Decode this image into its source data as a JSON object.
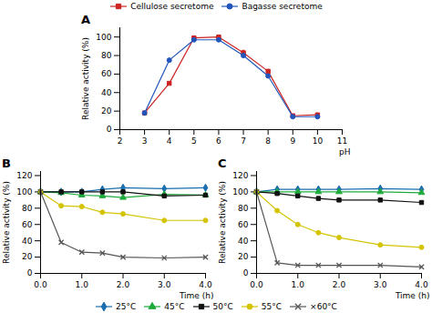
{
  "chart_data": [
    {
      "type": "line",
      "title": "A",
      "x_label": "pH",
      "y_label": "Relative activity (%)",
      "x": [
        3,
        4,
        5,
        6,
        7,
        8,
        9,
        10
      ],
      "series": [
        {
          "name": "Cellulose secretome",
          "color": "#cc2222",
          "marker": "square",
          "values": [
            18,
            50,
            99,
            100,
            83,
            63,
            15,
            16
          ],
          "errors": [
            1,
            1,
            2,
            2,
            3,
            2,
            1,
            1
          ]
        },
        {
          "name": "Bagasse secretome",
          "color": "#2255bb",
          "marker": "circle",
          "values": [
            18,
            75,
            97,
            97,
            80,
            58,
            14,
            14
          ],
          "errors": [
            1,
            2,
            2,
            2,
            2,
            2,
            1,
            1
          ]
        }
      ],
      "xlim": [
        2,
        11
      ],
      "xticks": [
        2,
        3,
        4,
        5,
        6,
        7,
        8,
        9,
        10,
        11
      ],
      "ylim": [
        0,
        110
      ],
      "yticks": [
        0,
        20,
        40,
        60,
        80,
        100
      ],
      "grid": false,
      "legend": "top"
    },
    {
      "type": "line",
      "title": "B",
      "x_label": "Time (h)",
      "y_label": "Relative activity (%)",
      "x": [
        0,
        0.5,
        1,
        1.5,
        2,
        3,
        4
      ],
      "series": [
        {
          "name": "25°C",
          "color": "#1a6faf",
          "marker": "diamond",
          "values": [
            100,
            100,
            100,
            103,
            105,
            104,
            105
          ]
        },
        {
          "name": "45°C",
          "color": "#1faa3c",
          "marker": "triangle",
          "values": [
            100,
            99,
            96,
            95,
            93,
            97,
            96
          ]
        },
        {
          "name": "50°C",
          "color": "#111111",
          "marker": "square",
          "values": [
            100,
            100,
            100,
            100,
            100,
            95,
            96
          ]
        },
        {
          "name": "55°C",
          "color": "#d4c400",
          "marker": "circle",
          "values": [
            100,
            83,
            82,
            75,
            73,
            65,
            65
          ]
        },
        {
          "name": "×60°C",
          "color": "#555555",
          "marker": "x",
          "values": [
            100,
            38,
            26,
            25,
            20,
            19,
            20
          ]
        }
      ],
      "xlim": [
        0,
        4
      ],
      "xticks": [
        0,
        1,
        2,
        3,
        4
      ],
      "ylim": [
        0,
        125
      ],
      "yticks": [
        0,
        20,
        40,
        60,
        80,
        100,
        120
      ],
      "grid": false,
      "legend": "bottom"
    },
    {
      "type": "line",
      "title": "C",
      "x_label": "Time (h)",
      "y_label": "Relative activity (%)",
      "x": [
        0,
        0.5,
        1,
        1.5,
        2,
        3,
        4
      ],
      "series": [
        {
          "name": "25°C",
          "color": "#1a6faf",
          "marker": "diamond",
          "values": [
            100,
            103,
            103,
            103,
            103,
            104,
            103
          ]
        },
        {
          "name": "45°C",
          "color": "#1faa3c",
          "marker": "triangle",
          "values": [
            100,
            100,
            100,
            100,
            100,
            100,
            99
          ]
        },
        {
          "name": "50°C",
          "color": "#111111",
          "marker": "square",
          "values": [
            100,
            98,
            95,
            92,
            90,
            90,
            87
          ]
        },
        {
          "name": "55°C",
          "color": "#d4c400",
          "marker": "circle",
          "values": [
            100,
            77,
            60,
            50,
            44,
            35,
            32
          ]
        },
        {
          "name": "×60°C",
          "color": "#555555",
          "marker": "x",
          "values": [
            100,
            13,
            10,
            10,
            10,
            10,
            8
          ]
        }
      ],
      "xlim": [
        0,
        4
      ],
      "xticks": [
        0,
        1,
        2,
        3,
        4
      ],
      "ylim": [
        0,
        125
      ],
      "yticks": [
        0,
        20,
        40,
        60,
        80,
        100,
        120
      ],
      "grid": false,
      "legend": "bottom"
    }
  ]
}
